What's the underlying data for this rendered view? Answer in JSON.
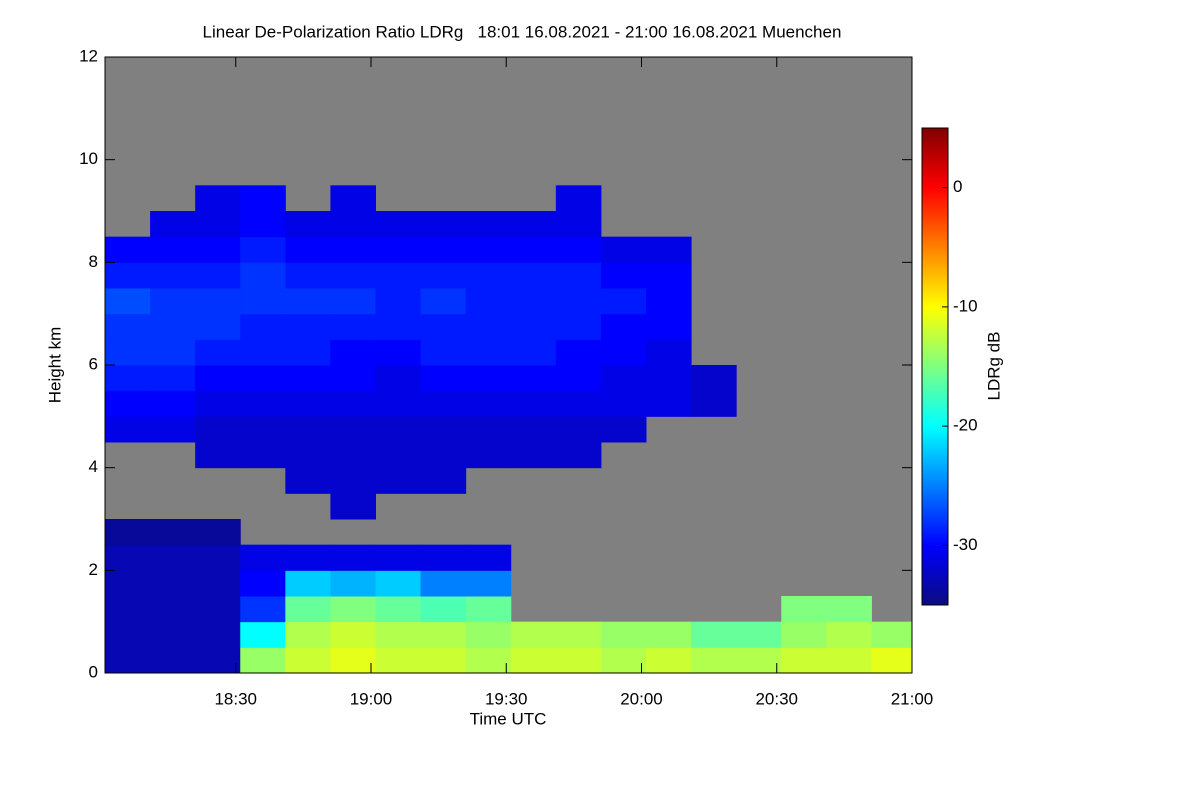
{
  "chart_data": {
    "type": "heatmap",
    "title": "Linear De-Polarization Ratio LDRg   18:01 16.08.2021 - 21:00 16.08.2021 Muenchen",
    "x_label": "Time UTC",
    "y_label": "Height km",
    "colorbar_label": "LDRg dB",
    "xlim": [
      1081,
      1260
    ],
    "xticks": [
      {
        "value": 1110,
        "label": "18:30"
      },
      {
        "value": 1140,
        "label": "19:00"
      },
      {
        "value": 1170,
        "label": "19:30"
      },
      {
        "value": 1200,
        "label": "20:00"
      },
      {
        "value": 1230,
        "label": "20:30"
      },
      {
        "value": 1260,
        "label": "21:00"
      }
    ],
    "ylim": [
      0,
      12
    ],
    "yticks": [
      0,
      2,
      4,
      6,
      8,
      10,
      12
    ],
    "zlim": [
      -35,
      5
    ],
    "zticks": [
      0,
      -10,
      -20,
      -30
    ],
    "colormap": [
      "#0b0b80",
      "#0000ff",
      "#0080ff",
      "#00ffff",
      "#80ff80",
      "#ffff00",
      "#ff8000",
      "#ff0000",
      "#800000"
    ],
    "nan_color": "#808080",
    "x": [
      1086,
      1096,
      1106,
      1116,
      1126,
      1136,
      1146,
      1156,
      1166,
      1176,
      1186,
      1196,
      1206,
      1216,
      1226,
      1236,
      1246,
      1256
    ],
    "y": [
      0.25,
      0.75,
      1.25,
      1.75,
      2.25,
      2.75,
      3.25,
      3.75,
      4.25,
      4.75,
      5.25,
      5.75,
      6.25,
      6.75,
      7.25,
      7.75,
      8.25,
      8.75,
      9.25,
      9.75,
      10.25,
      10.75,
      11.25,
      11.75
    ],
    "z": [
      [
        -33,
        -33,
        -33,
        -14,
        -12,
        -11,
        -12,
        -12,
        -13,
        -12,
        -12,
        -13,
        -12,
        -13,
        -13,
        -12,
        -12,
        -11
      ],
      [
        -33,
        -33,
        -33,
        -20,
        -13,
        -12,
        -13,
        -13,
        -14,
        -13,
        -13,
        -14,
        -14,
        -16,
        -16,
        -14,
        -13,
        -14
      ],
      [
        -33,
        -33,
        -33,
        -28,
        -16,
        -15,
        -16,
        -17,
        -16,
        null,
        null,
        null,
        null,
        null,
        null,
        -15,
        -15,
        null
      ],
      [
        -33,
        -33,
        -33,
        -30,
        -22,
        -23,
        -22,
        -25,
        -25,
        null,
        null,
        null,
        null,
        null,
        null,
        null,
        null,
        null
      ],
      [
        -33,
        -33,
        -33,
        -31,
        -31,
        -31,
        -31,
        -31,
        -31,
        null,
        null,
        null,
        null,
        null,
        null,
        null,
        null,
        null
      ],
      [
        -34,
        -34,
        -34,
        null,
        null,
        null,
        null,
        null,
        null,
        null,
        null,
        null,
        null,
        null,
        null,
        null,
        null,
        null
      ],
      [
        null,
        null,
        null,
        null,
        null,
        -32,
        null,
        null,
        null,
        null,
        null,
        null,
        null,
        null,
        null,
        null,
        null,
        null
      ],
      [
        null,
        null,
        null,
        null,
        -32,
        -32,
        -32,
        -32,
        null,
        null,
        null,
        null,
        null,
        null,
        null,
        null,
        null,
        null
      ],
      [
        null,
        null,
        -32,
        -32,
        -32,
        -32,
        -32,
        -32,
        -32,
        -32,
        -32,
        null,
        null,
        null,
        null,
        null,
        null,
        null
      ],
      [
        -31,
        -31,
        -32,
        -32,
        -32,
        -32,
        -32,
        -32,
        -32,
        -32,
        -32,
        -32,
        null,
        null,
        null,
        null,
        null,
        null
      ],
      [
        -30,
        -30,
        -31,
        -31,
        -31,
        -31,
        -31,
        -31,
        -31,
        -31,
        -31,
        -31,
        -31,
        -32,
        null,
        null,
        null,
        null
      ],
      [
        -29,
        -29,
        -30,
        -30,
        -30,
        -30,
        -31,
        -30,
        -30,
        -30,
        -30,
        -31,
        -31,
        -32,
        null,
        null,
        null,
        null
      ],
      [
        -28,
        -28,
        -29,
        -29,
        -29,
        -30,
        -30,
        -29,
        -29,
        -29,
        -30,
        -30,
        -31,
        null,
        null,
        null,
        null,
        null
      ],
      [
        -28,
        -28,
        -28,
        -29,
        -29,
        -29,
        -29,
        -29,
        -29,
        -29,
        -29,
        -30,
        -30,
        null,
        null,
        null,
        null,
        null
      ],
      [
        -27,
        -28,
        -28,
        -28,
        -28,
        -28,
        -29,
        -28,
        -29,
        -29,
        -29,
        -29,
        -30,
        null,
        null,
        null,
        null,
        null
      ],
      [
        -29,
        -29,
        -29,
        -28,
        -29,
        -29,
        -29,
        -29,
        -29,
        -29,
        -29,
        -30,
        -30,
        null,
        null,
        null,
        null,
        null
      ],
      [
        -30,
        -30,
        -30,
        -29,
        -30,
        -30,
        -30,
        -30,
        -30,
        -30,
        -30,
        -31,
        -31,
        null,
        null,
        null,
        null,
        null
      ],
      [
        null,
        -31,
        -31,
        -30,
        -31,
        -31,
        -31,
        -31,
        -31,
        -31,
        -31,
        null,
        null,
        null,
        null,
        null,
        null,
        null
      ],
      [
        null,
        null,
        -31,
        -30,
        null,
        -31,
        null,
        null,
        null,
        null,
        -31,
        null,
        null,
        null,
        null,
        null,
        null,
        null
      ],
      [
        null,
        null,
        null,
        null,
        null,
        null,
        null,
        null,
        null,
        null,
        null,
        null,
        null,
        null,
        null,
        null,
        null,
        null
      ],
      [
        null,
        null,
        null,
        null,
        null,
        null,
        null,
        null,
        null,
        null,
        null,
        null,
        null,
        null,
        null,
        null,
        null,
        null
      ],
      [
        null,
        null,
        null,
        null,
        null,
        null,
        null,
        null,
        null,
        null,
        null,
        null,
        null,
        null,
        null,
        null,
        null,
        null
      ],
      [
        null,
        null,
        null,
        null,
        null,
        null,
        null,
        null,
        null,
        null,
        null,
        null,
        null,
        null,
        null,
        null,
        null,
        null
      ],
      [
        null,
        null,
        null,
        null,
        null,
        null,
        null,
        null,
        null,
        null,
        null,
        null,
        null,
        null,
        null,
        null,
        null,
        null
      ]
    ]
  }
}
